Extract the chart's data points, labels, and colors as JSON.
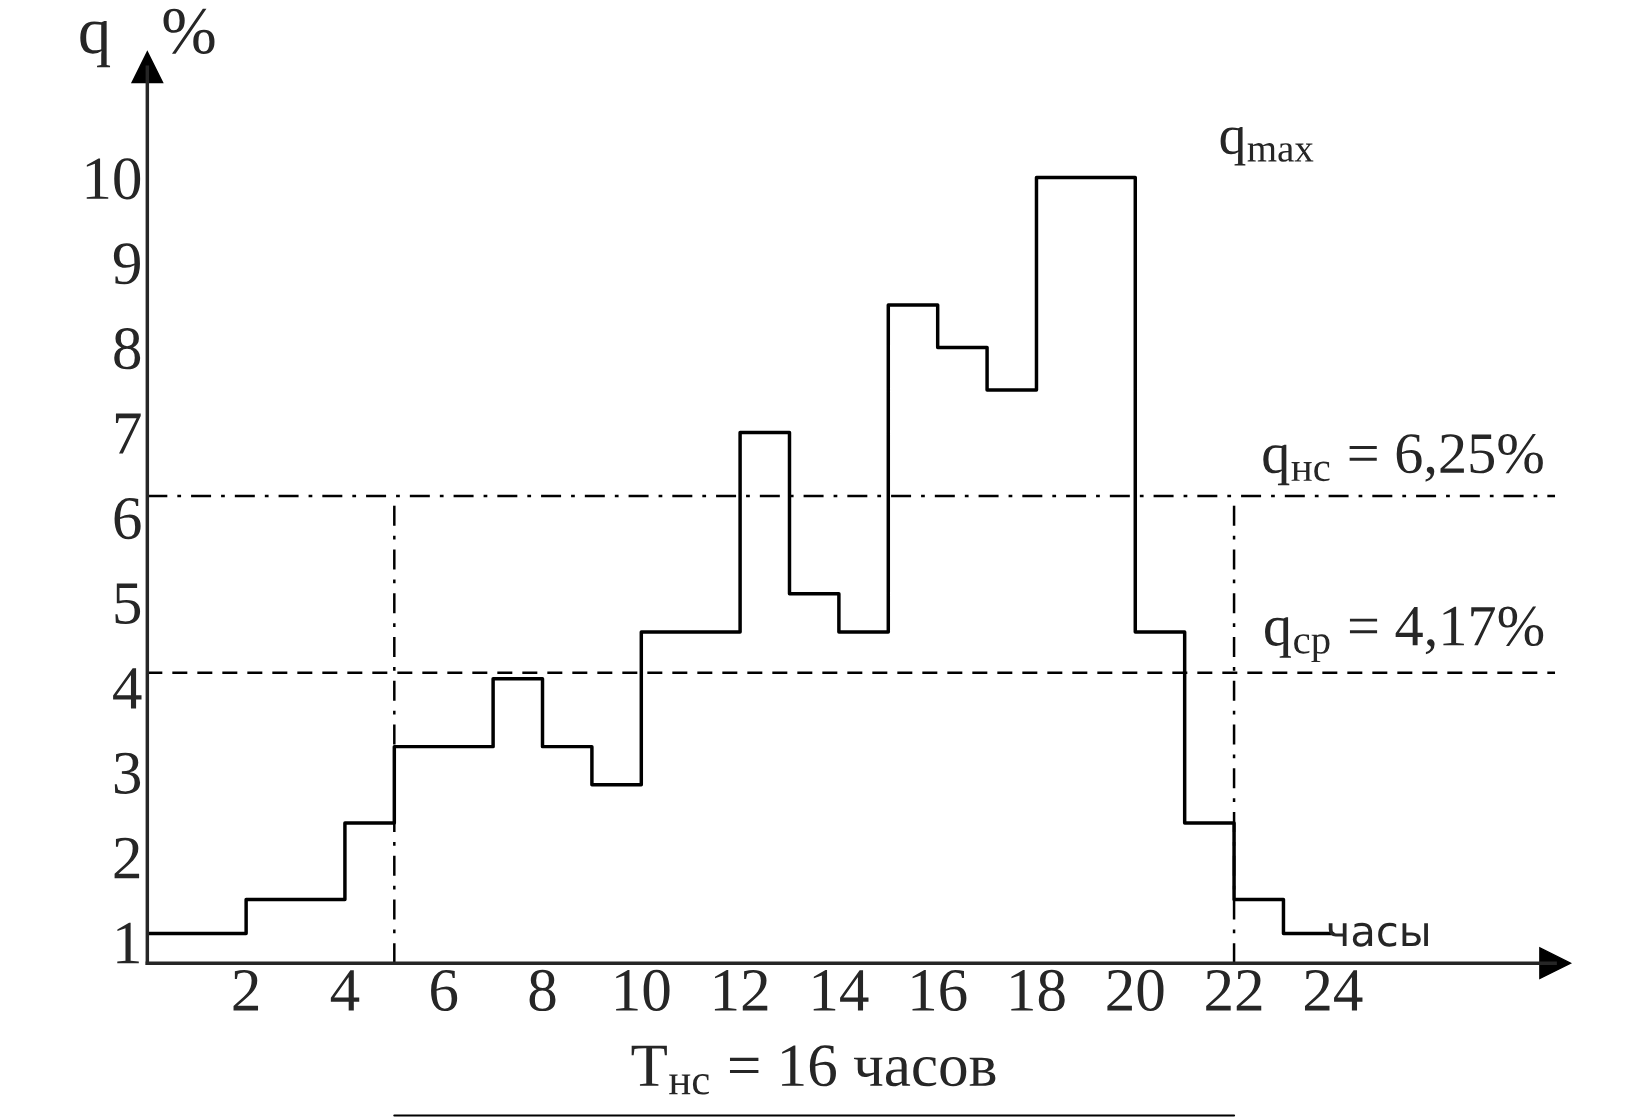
{
  "chart_data": {
    "type": "step",
    "ylabel": "q   %",
    "xlabel": "часы",
    "x": [
      0,
      2,
      4,
      5,
      7,
      8,
      9,
      10,
      12,
      13,
      14,
      15,
      16,
      17,
      18,
      20,
      21,
      22,
      23,
      24
    ],
    "values": [
      1.1,
      1.5,
      2.4,
      3.3,
      4.1,
      3.3,
      2.85,
      4.65,
      7.0,
      5.1,
      4.65,
      8.5,
      8.0,
      7.5,
      10,
      4.65,
      2.4,
      1.5,
      1.1,
      1.1
    ],
    "color": "#000000",
    "line_style": "solid",
    "xlim": [
      0,
      28.5
    ],
    "ylim": [
      0.75,
      11.3
    ],
    "xticks": [
      2,
      4,
      6,
      8,
      10,
      12,
      14,
      16,
      18,
      20,
      22,
      24
    ],
    "yticks": [
      1,
      2,
      3,
      4,
      5,
      6,
      7,
      8,
      9,
      10
    ],
    "grid": false,
    "legend": false,
    "ref_lines": [
      {
        "axis": "y",
        "value": 6.25,
        "label": "q$_{нс}$ = 6,25%",
        "line_style": "dashdot",
        "color": "#000000"
      },
      {
        "axis": "y",
        "value": 4.17,
        "label": "q$_{ср}$ = 4,17%",
        "line_style": "dashed",
        "color": "#000000"
      },
      {
        "axis": "x",
        "value": 5,
        "label": null,
        "line_style": "dashdot",
        "color": "#000000"
      },
      {
        "axis": "x",
        "value": 22,
        "label": null,
        "line_style": "dashdot",
        "color": "#000000"
      }
    ],
    "annotations": [
      {
        "text": "q$_{max}$",
        "x": 20,
        "y": 10
      },
      "T$_{нс}$ = 16 часов"
    ]
  }
}
